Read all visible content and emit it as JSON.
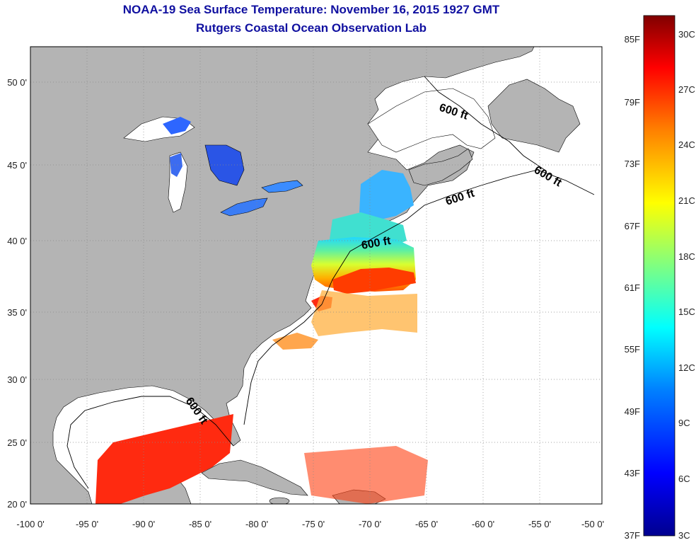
{
  "title": {
    "line1": "NOAA-19 Sea Surface Temperature:  November 16, 2015 1927 GMT",
    "line2": "Rutgers Coastal Ocean Observation Lab"
  },
  "axes": {
    "lon_labels": [
      "-100 0'",
      "-95 0'",
      "-90 0'",
      "-85 0'",
      "-80 0'",
      "-75 0'",
      "-70 0'",
      "-65 0'",
      "-60 0'",
      "-55 0'",
      "-50 0'"
    ],
    "lat_labels": [
      "50 0'",
      "45 0'",
      "40 0'",
      "35 0'",
      "30 0'",
      "25 0'",
      "20 0'"
    ],
    "grid": "dotted"
  },
  "contour_label": "600 ft",
  "colorbar": {
    "fahrenheit": [
      "85F",
      "79F",
      "73F",
      "67F",
      "61F",
      "55F",
      "49F",
      "43F",
      "37F"
    ],
    "celsius": [
      "30C",
      "27C",
      "24C",
      "21C",
      "18C",
      "15C",
      "12C",
      "9C",
      "6C",
      "3C"
    ],
    "colormap": [
      "#00008f",
      "#0000ff",
      "#0080ff",
      "#00ffff",
      "#80ff80",
      "#ffff00",
      "#ff8000",
      "#ff0000",
      "#800000"
    ]
  },
  "colors": {
    "land": "#b4b4b4",
    "ocean": "#ffffff",
    "title": "#1010a0"
  }
}
